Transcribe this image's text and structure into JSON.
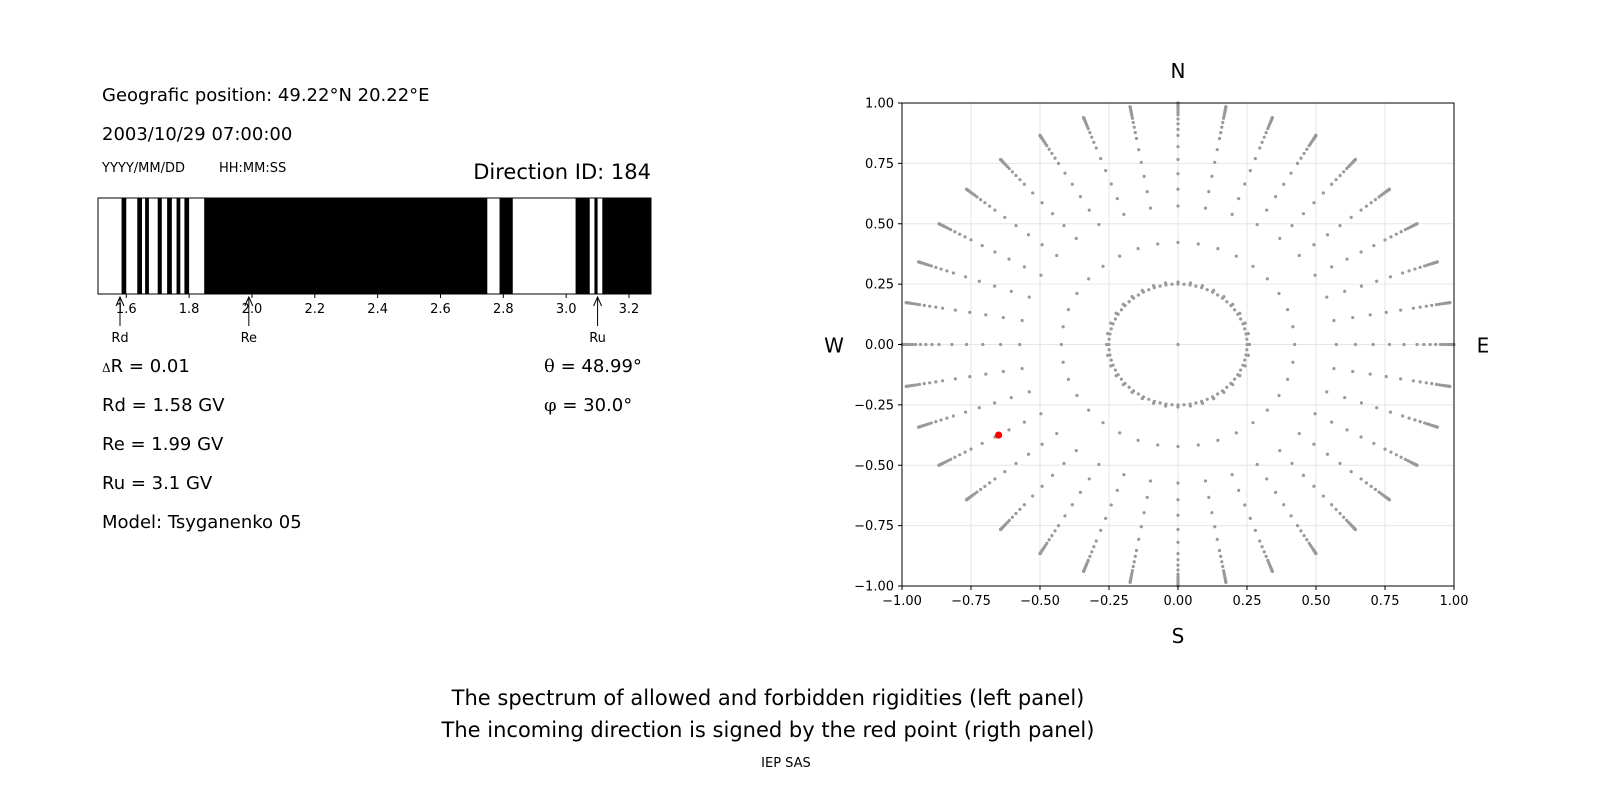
{
  "info": {
    "position": "Geografic position: 49.22°N 20.22°E",
    "datetime": "2003/10/29 07:00:00",
    "date_format": "YYYY/MM/DD",
    "time_format": "HH:MM:SS",
    "direction_id": "Direction ID: 184"
  },
  "params": {
    "delta_symbol": "Δ",
    "delta_r": "R = 0.01",
    "rd": "Rd = 1.58 GV",
    "re": "Re = 1.99 GV",
    "ru": "Ru = 3.1 GV",
    "model": "Model: Tsyganenko 05",
    "theta_symbol": "θ",
    "theta": " = 48.99°",
    "phi_symbol": "φ",
    "phi": " = 30.0°"
  },
  "compass": {
    "n": "N",
    "s": "S",
    "w": "W",
    "e": "E"
  },
  "caption": {
    "line1": "The spectrum of allowed and forbidden rigidities (left panel)",
    "line2": "The incoming direction is signed by the red point (rigth panel)",
    "credit": "IEP SAS"
  },
  "chart_data": [
    {
      "type": "spectrum",
      "xlim": [
        1.51,
        3.27
      ],
      "ticks": [
        1.6,
        1.8,
        2.0,
        2.2,
        2.4,
        2.6,
        2.8,
        3.0,
        3.2
      ],
      "tick_labels": [
        "1.6",
        "1.8",
        "2.0",
        "2.2",
        "2.4",
        "2.6",
        "2.8",
        "3.0",
        "3.2"
      ],
      "forbidden_bands": [
        [
          1.585,
          1.6
        ],
        [
          1.635,
          1.65
        ],
        [
          1.66,
          1.672
        ],
        [
          1.7,
          1.713
        ],
        [
          1.73,
          1.745
        ],
        [
          1.76,
          1.772
        ],
        [
          1.785,
          1.8
        ],
        [
          1.848,
          2.749
        ],
        [
          2.788,
          2.83
        ],
        [
          3.03,
          3.075
        ],
        [
          3.09,
          3.1
        ],
        [
          3.115,
          3.27
        ]
      ],
      "markers": [
        {
          "name": "Rd",
          "value": 1.58
        },
        {
          "name": "Re",
          "value": 1.99
        },
        {
          "name": "Ru",
          "value": 3.1
        }
      ],
      "colors": {
        "forbidden": "#000000",
        "allowed": "#ffffff"
      }
    },
    {
      "type": "scatter",
      "xlim": [
        -1.0,
        1.0
      ],
      "ylim": [
        -1.0,
        1.0
      ],
      "ticks": [
        -1.0,
        -0.75,
        -0.5,
        -0.25,
        0.0,
        0.25,
        0.5,
        0.75,
        1.0
      ],
      "tick_labels": [
        "−1.00",
        "−0.75",
        "−0.50",
        "−0.25",
        "0.00",
        "0.25",
        "0.50",
        "0.75",
        "1.00"
      ],
      "grid": true,
      "grid_description": "radial spokes every 10° of azimuth and rings of constant zenith angle; radius = sin(zenith)",
      "azimuth_step_deg": 10,
      "zenith_rings_deg": [
        0,
        15,
        25,
        35,
        40,
        45,
        50,
        55,
        60,
        63,
        66,
        69,
        72,
        74,
        76,
        78,
        80,
        82,
        84,
        86,
        88,
        90
      ],
      "highlight": {
        "x": -0.65,
        "y": -0.375,
        "color": "#ff0000"
      },
      "colors": {
        "grid_points": "#999999",
        "highlight": "#ff0000"
      }
    }
  ]
}
